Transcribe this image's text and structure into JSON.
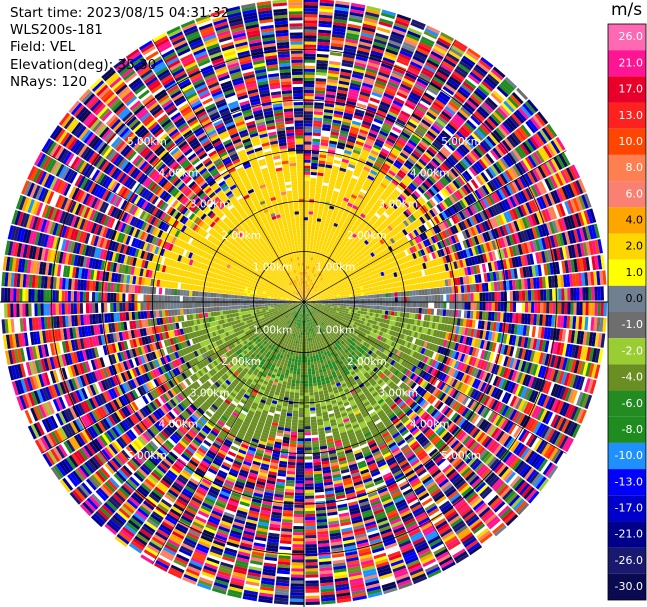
{
  "info": {
    "start_time": "Start time: 2023/08/15 04:31:32",
    "site": "WLS200s-181",
    "field": "Field: VEL",
    "elevation": "Elevation(deg): 35.30",
    "nrays": "NRays: 120"
  },
  "colorbar": {
    "unit": "m/s",
    "levels": [
      "26.0",
      "21.0",
      "17.0",
      "13.0",
      "10.0",
      "8.0",
      "6.0",
      "4.0",
      "2.0",
      "1.0",
      "0.0",
      "-1.0",
      "-2.0",
      "-4.0",
      "-6.0",
      "-8.0",
      "-10.0",
      "-13.0",
      "-17.0",
      "-21.0",
      "-26.0",
      "-30.0"
    ],
    "colors": [
      "#ff69b4",
      "#ff1493",
      "#e8002a",
      "#ff2020",
      "#ff4500",
      "#ff7f50",
      "#fa8072",
      "#ffa500",
      "#ffd700",
      "#ffff00",
      "#708090",
      "#6e6e6e",
      "#9acd32",
      "#6b8e23",
      "#228b22",
      "#1e8c1e",
      "#1e90ff",
      "#0000ff",
      "#0000cd",
      "#00008b",
      "#191970",
      "#0a0a50"
    ]
  },
  "chart_data": {
    "type": "polar_ppi",
    "field": "VEL",
    "units": "m/s",
    "n_rays": 120,
    "elevation_deg": 35.3,
    "max_range_km": 6.0,
    "range_rings_km": [
      1.0,
      2.0,
      3.0,
      4.0,
      5.0
    ],
    "ring_label_text": [
      "1.00km",
      "2.00km",
      "3.00km",
      "4.00km",
      "5.00km"
    ],
    "azimuth_spokes_deg": [
      0,
      30,
      60,
      90,
      120,
      150,
      180,
      210,
      240,
      270,
      300,
      330
    ],
    "pattern": {
      "coherent_max_range_km": 2.5,
      "north_sector_velocity_ms": [
        2.0,
        4.0
      ],
      "south_sector_velocity_ms": [
        -4.0,
        -2.0
      ],
      "near_zero_band_ms": [
        -1.0,
        1.0
      ],
      "far_range": "noise (random velocities across full scale)"
    }
  }
}
